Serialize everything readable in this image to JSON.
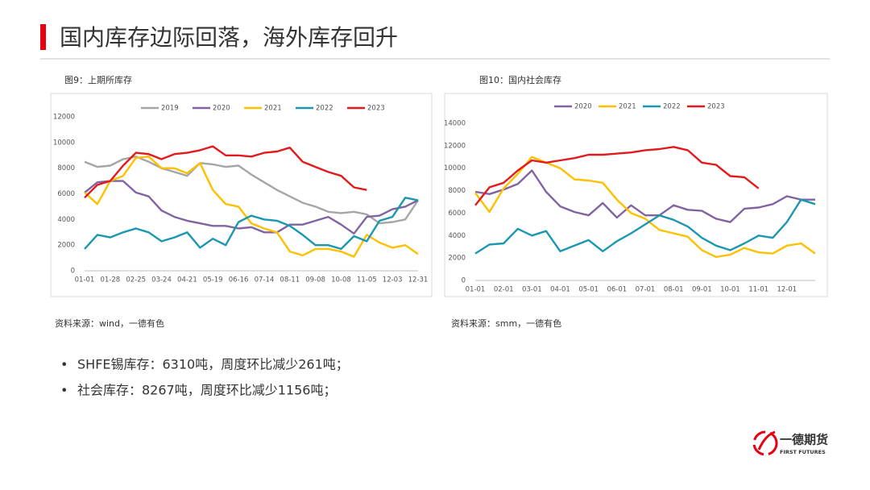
{
  "title": "国内库存边际回落，海外库存回升",
  "chart_data": [
    {
      "type": "line",
      "caption": "图9：上期所库存",
      "source": "资料来源：wind，一德有色",
      "categories": [
        "01-01",
        null,
        "01-28",
        null,
        "02-25",
        null,
        "03-24",
        null,
        "04-21",
        null,
        "05-19",
        null,
        "06-16",
        null,
        "07-14",
        null,
        "08-11",
        null,
        "09-08",
        null,
        "10-08",
        null,
        "11-05",
        null,
        "12-03",
        null,
        "12-31"
      ],
      "ylim": [
        0,
        12000
      ],
      "yticks": [
        0,
        2000,
        4000,
        6000,
        8000,
        10000,
        12000
      ],
      "legend": "top",
      "series": [
        {
          "name": "2019",
          "color": "#a6a6a6",
          "values": [
            8500,
            8100,
            8200,
            8700,
            8900,
            8500,
            8000,
            7700,
            7400,
            8400,
            8300,
            8100,
            8200,
            7500,
            6900,
            6300,
            5800,
            5300,
            5000,
            4600,
            4500,
            4600,
            4400,
            3700,
            3800,
            4000,
            5500
          ]
        },
        {
          "name": "2020",
          "color": "#8064a2",
          "values": [
            6100,
            6900,
            7000,
            7000,
            6100,
            5800,
            4700,
            4200,
            3900,
            3700,
            3500,
            3500,
            3300,
            3400,
            3000,
            3000,
            3600,
            3600,
            3900,
            4200,
            3600,
            2900,
            4200,
            4300,
            4800,
            5000,
            5500
          ]
        },
        {
          "name": "2021",
          "color": "#ffc000",
          "values": [
            6100,
            5200,
            7000,
            7400,
            8800,
            8900,
            8000,
            8000,
            7600,
            8400,
            6300,
            5200,
            5000,
            3700,
            3300,
            3000,
            1500,
            1200,
            1700,
            1700,
            1500,
            1100,
            2800,
            2200,
            1800,
            2000,
            1300
          ]
        },
        {
          "name": "2022",
          "color": "#1b97b0",
          "values": [
            1700,
            2800,
            2600,
            3000,
            3300,
            3000,
            2300,
            2600,
            3000,
            1800,
            2500,
            2000,
            3800,
            4300,
            4000,
            3900,
            3500,
            2800,
            2000,
            2000,
            1700,
            2700,
            2300,
            3900,
            4200,
            5700,
            5500
          ]
        },
        {
          "name": "2023",
          "color": "#e31a1c",
          "values": [
            5700,
            6700,
            7000,
            8200,
            9200,
            9100,
            8700,
            9100,
            9200,
            9400,
            9700,
            9000,
            9000,
            8900,
            9200,
            9300,
            9600,
            8500,
            8100,
            7700,
            7400,
            6500,
            6300,
            null,
            null,
            null,
            null
          ]
        }
      ]
    },
    {
      "type": "line",
      "caption": "图10：国内社会库存",
      "source": "资料来源：smm，一德有色",
      "categories": [
        "01-01",
        null,
        "02-01",
        null,
        "03-01",
        null,
        "04-01",
        null,
        "05-01",
        null,
        "06-01",
        null,
        "07-01",
        null,
        "08-01",
        null,
        "09-01",
        null,
        "10-01",
        null,
        "11-01",
        null,
        "12-01",
        null,
        null
      ],
      "ylim": [
        0,
        14000
      ],
      "yticks": [
        0,
        2000,
        4000,
        6000,
        8000,
        10000,
        12000,
        14000
      ],
      "legend": "top",
      "series": [
        {
          "name": "2020",
          "color": "#8064a2",
          "values": [
            7900,
            7700,
            8100,
            8600,
            9800,
            7900,
            6600,
            6100,
            5800,
            6900,
            5600,
            6700,
            5800,
            5800,
            6700,
            6300,
            6200,
            5500,
            5200,
            6400,
            6500,
            6800,
            7500,
            7200,
            7200
          ]
        },
        {
          "name": "2021",
          "color": "#ffc000",
          "values": [
            7800,
            6100,
            8200,
            9500,
            11000,
            10500,
            10000,
            9000,
            8900,
            8700,
            7200,
            6000,
            5500,
            4500,
            4200,
            3900,
            2700,
            2100,
            2300,
            2900,
            2500,
            2400,
            3100,
            3300,
            2400
          ]
        },
        {
          "name": "2022",
          "color": "#1b97b0",
          "values": [
            2400,
            3200,
            3300,
            4600,
            4000,
            4400,
            2600,
            3100,
            3600,
            2600,
            3500,
            4200,
            5000,
            5800,
            5400,
            4800,
            3800,
            3100,
            2700,
            3300,
            4000,
            3800,
            5200,
            7200,
            6800
          ]
        },
        {
          "name": "2023",
          "color": "#e31a1c",
          "values": [
            6700,
            8300,
            8700,
            9800,
            10700,
            10500,
            10700,
            10900,
            11200,
            11200,
            11300,
            11400,
            11600,
            11700,
            11900,
            11600,
            10500,
            10300,
            9300,
            9200,
            8200,
            null,
            null,
            null,
            null
          ]
        }
      ]
    }
  ],
  "bullets": [
    "SHFE锡库存：6310吨，周度环比减少261吨；",
    "社会库存：8267吨，周度环比减少1156吨；"
  ],
  "logo": {
    "name": "一德期货",
    "english": "FIRST FUTURES"
  }
}
